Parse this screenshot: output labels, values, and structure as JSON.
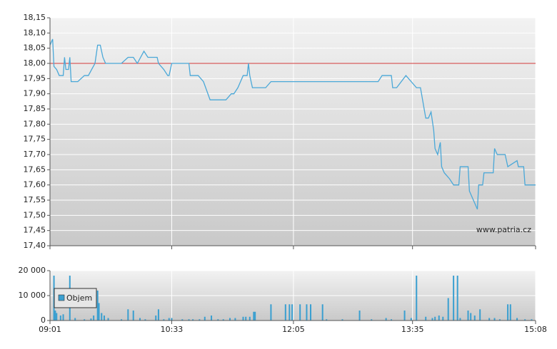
{
  "chart_data": [
    {
      "type": "line",
      "x": [
        541,
        543,
        544,
        546,
        548,
        551,
        552,
        553,
        555,
        556,
        557,
        562,
        567,
        570,
        575,
        577,
        579,
        581,
        583,
        595,
        600,
        604,
        607,
        612,
        615,
        622,
        623,
        627,
        630,
        631,
        633,
        646,
        647,
        653,
        657,
        662,
        674,
        678,
        680,
        683,
        685,
        687,
        690,
        691,
        692,
        694,
        704,
        708,
        789,
        792,
        799,
        800,
        803,
        810,
        818,
        821,
        825,
        827,
        829,
        831,
        832,
        834,
        836,
        837,
        839,
        843,
        846,
        850,
        851,
        857,
        858,
        860,
        862,
        864,
        865,
        868,
        869,
        876,
        877,
        879,
        885,
        887,
        894,
        895,
        899,
        900,
        908
      ],
      "values": [
        18.06,
        18.08,
        17.99,
        17.98,
        17.96,
        17.96,
        18.02,
        17.98,
        17.98,
        18.02,
        17.94,
        17.94,
        17.96,
        17.96,
        18.0,
        18.06,
        18.06,
        18.02,
        18.0,
        18.0,
        18.02,
        18.02,
        18.0,
        18.04,
        18.02,
        18.02,
        18.0,
        17.98,
        17.96,
        17.96,
        18.0,
        18.0,
        17.96,
        17.96,
        17.94,
        17.88,
        17.88,
        17.9,
        17.9,
        17.92,
        17.94,
        17.96,
        17.96,
        18.0,
        17.96,
        17.92,
        17.92,
        17.94,
        17.94,
        17.96,
        17.96,
        17.92,
        17.92,
        17.96,
        17.92,
        17.92,
        17.82,
        17.82,
        17.84,
        17.78,
        17.72,
        17.7,
        17.74,
        17.66,
        17.64,
        17.62,
        17.6,
        17.6,
        17.66,
        17.66,
        17.58,
        17.56,
        17.54,
        17.52,
        17.6,
        17.6,
        17.64,
        17.64,
        17.72,
        17.7,
        17.7,
        17.66,
        17.68,
        17.66,
        17.66,
        17.6,
        17.6
      ],
      "color": "#4aa8d8",
      "reference_line": 18.0,
      "reference_color": "#d43a3a",
      "annotation": "www.patria.cz",
      "xlim": [
        541,
        908
      ],
      "xticks": [
        541,
        633,
        725,
        815,
        908
      ],
      "ylim": [
        17.4,
        18.15
      ],
      "yticks": [
        {
          "value": 17.4,
          "label": "17,40"
        },
        {
          "value": 17.45,
          "label": "17,45"
        },
        {
          "value": 17.5,
          "label": "17,50"
        },
        {
          "value": 17.55,
          "label": "17,55"
        },
        {
          "value": 17.6,
          "label": "17,60"
        },
        {
          "value": 17.65,
          "label": "17,65"
        },
        {
          "value": 17.7,
          "label": "17,70"
        },
        {
          "value": 17.75,
          "label": "17,75"
        },
        {
          "value": 17.8,
          "label": "17,80"
        },
        {
          "value": 17.85,
          "label": "17,85"
        },
        {
          "value": 17.9,
          "label": "17,90"
        },
        {
          "value": 17.95,
          "label": "17,95"
        },
        {
          "value": 18.0,
          "label": "18,00"
        },
        {
          "value": 18.05,
          "label": "18,05"
        },
        {
          "value": 18.1,
          "label": "18,10"
        },
        {
          "value": 18.15,
          "label": "18,15"
        }
      ],
      "grid": true
    },
    {
      "type": "bar",
      "x": [
        544,
        545,
        546,
        549,
        551,
        556,
        560,
        567,
        572,
        574,
        577,
        578,
        580,
        582,
        585,
        595,
        600,
        604,
        609,
        613,
        621,
        623,
        627,
        631,
        633,
        641,
        646,
        649,
        654,
        658,
        663,
        668,
        672,
        677,
        681,
        687,
        689,
        692,
        695,
        696,
        708,
        719,
        722,
        724,
        730,
        735,
        738,
        747,
        750,
        762,
        775,
        784,
        795,
        799,
        809,
        814,
        818,
        825,
        830,
        832,
        835,
        838,
        842,
        846,
        849,
        851,
        857,
        859,
        862,
        866,
        873,
        877,
        881,
        887,
        889,
        894,
        900,
        905
      ],
      "series": [
        {
          "name": "Objem",
          "color": "#3a9fd0",
          "values": [
            18000,
            4000,
            3000,
            2000,
            2500,
            18000,
            1000,
            500,
            800,
            2000,
            12000,
            7000,
            3000,
            2000,
            1000,
            500,
            4500,
            4000,
            1000,
            500,
            2000,
            4500,
            500,
            1000,
            1000,
            500,
            500,
            500,
            500,
            1500,
            2000,
            500,
            500,
            1000,
            1000,
            1500,
            1500,
            1500,
            3500,
            3500,
            6500,
            6500,
            6500,
            6500,
            6500,
            6500,
            6500,
            6500,
            500,
            500,
            4000,
            500,
            1000,
            500,
            4000,
            1000,
            18000,
            1500,
            1000,
            1500,
            2000,
            1500,
            9000,
            18000,
            18000,
            1000,
            4000,
            3000,
            2000,
            4500,
            1000,
            1000,
            500,
            6500,
            6500,
            1000,
            500,
            500
          ]
        }
      ],
      "xlim": [
        541,
        908
      ],
      "xticks": [
        {
          "value": 541,
          "label": "09:01"
        },
        {
          "value": 633,
          "label": "10:33"
        },
        {
          "value": 725,
          "label": "12:05"
        },
        {
          "value": 815,
          "label": "13:35"
        },
        {
          "value": 908,
          "label": "15:08"
        }
      ],
      "ylim": [
        0,
        20000
      ],
      "yticks": [
        0,
        {
          "value": 10000,
          "label": "10 000"
        },
        {
          "value": 20000,
          "label": "20 000"
        }
      ],
      "grid": true
    }
  ]
}
